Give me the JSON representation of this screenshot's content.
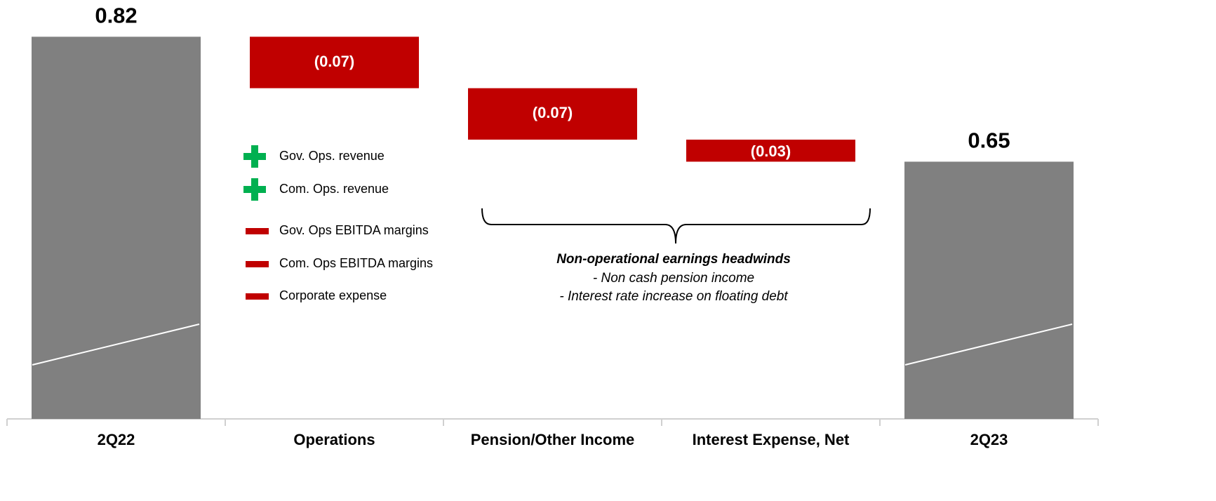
{
  "chart_data": {
    "type": "waterfall",
    "categories": [
      "2Q22",
      "Operations",
      "Pension/Other Income",
      "Interest Expense, Net",
      "2Q23"
    ],
    "values": [
      0.82,
      -0.07,
      -0.07,
      -0.03,
      0.65
    ],
    "value_labels": [
      "0.82",
      "(0.07)",
      "(0.07)",
      "(0.03)",
      "0.65"
    ],
    "measures": [
      "total",
      "relative",
      "relative",
      "relative",
      "total"
    ],
    "colors": {
      "total": "#808080",
      "decrease": "#c00000"
    },
    "ylim": [
      0.3,
      0.87
    ],
    "legend": [
      {
        "label": "Gov. Ops. revenue",
        "icon": "plus",
        "color": "#00b050"
      },
      {
        "label": "Com. Ops. revenue",
        "icon": "plus",
        "color": "#00b050"
      },
      {
        "label": "Gov. Ops EBITDA margins",
        "icon": "minus",
        "color": "#c00000"
      },
      {
        "label": "Com. Ops EBITDA margins",
        "icon": "minus",
        "color": "#c00000"
      },
      {
        "label": "Corporate expense",
        "icon": "minus",
        "color": "#c00000"
      }
    ],
    "annotation": {
      "title": "Non-operational earnings headwinds",
      "lines": [
        "- Non cash pension income",
        "- Interest rate increase on floating debt"
      ]
    }
  }
}
